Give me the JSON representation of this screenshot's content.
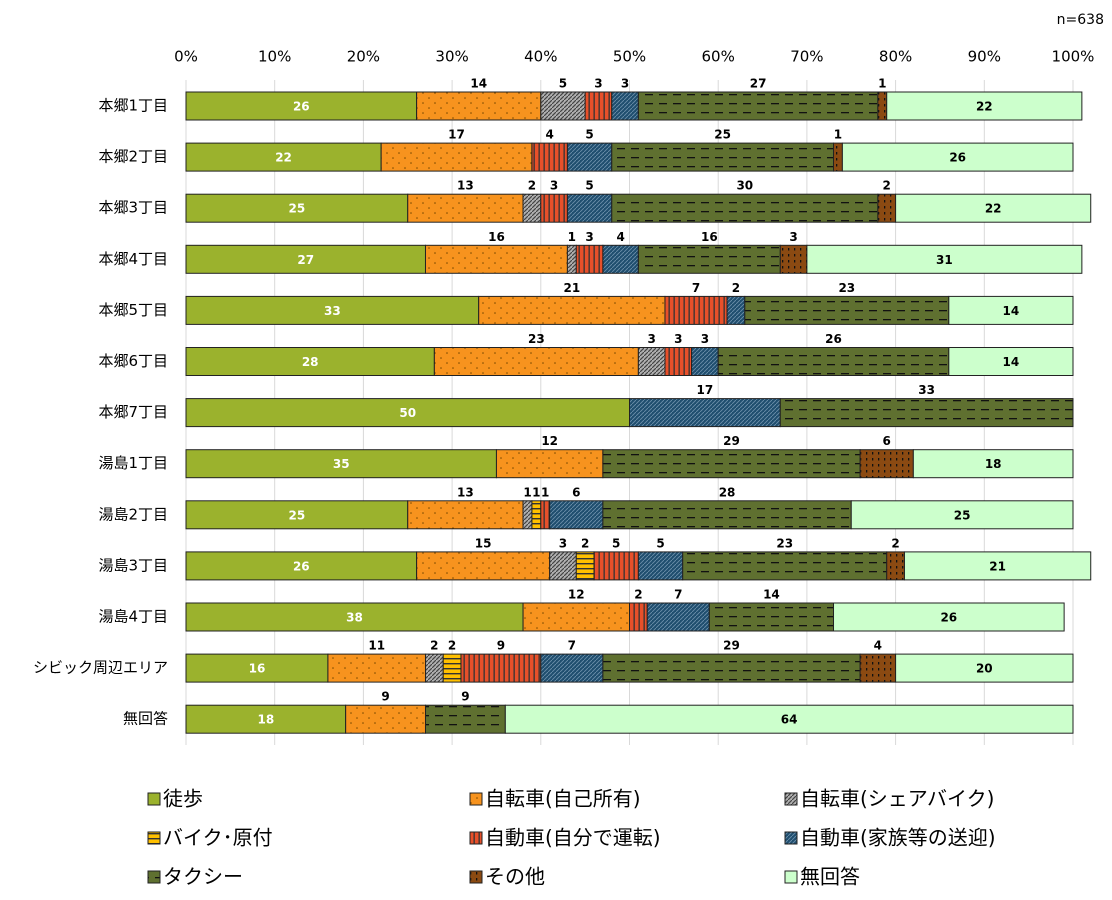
{
  "chart_data": {
    "type": "stacked-bar-horizontal",
    "note": "n=638",
    "categories": [
      "本郷1丁目",
      "本郷2丁目",
      "本郷3丁目",
      "本郷4丁目",
      "本郷5丁目",
      "本郷6丁目",
      "本郷7丁目",
      "湯島1丁目",
      "湯島2丁目",
      "湯島3丁目",
      "湯島4丁目",
      "シビック周辺エリア",
      "無回答"
    ],
    "xlim": [
      0,
      100
    ],
    "xticks": [
      {
        "value": 0,
        "label": "0%"
      },
      {
        "value": 10,
        "label": "10%"
      },
      {
        "value": 20,
        "label": "20%"
      },
      {
        "value": 30,
        "label": "30%"
      },
      {
        "value": 40,
        "label": "40%"
      },
      {
        "value": 50,
        "label": "50%"
      },
      {
        "value": 60,
        "label": "60%"
      },
      {
        "value": 70,
        "label": "70%"
      },
      {
        "value": 80,
        "label": "80%"
      },
      {
        "value": 90,
        "label": "90%"
      },
      {
        "value": 100,
        "label": "100%"
      }
    ],
    "grid": true,
    "series": [
      {
        "name": "徒歩",
        "color": "#9bb22d",
        "values": [
          26,
          22,
          25,
          27,
          33,
          28,
          50,
          35,
          25,
          26,
          38,
          16,
          18
        ]
      },
      {
        "name": "自転車(自己所有)",
        "color": "#f7931e",
        "values": [
          14,
          17,
          13,
          16,
          21,
          23,
          null,
          12,
          13,
          15,
          12,
          11,
          9
        ]
      },
      {
        "name": "自転車(シェアバイク)",
        "color": "#8c8c8c",
        "values": [
          5,
          null,
          2,
          1,
          null,
          3,
          null,
          null,
          1,
          3,
          null,
          2,
          null
        ]
      },
      {
        "name": "バイク･原付",
        "color": "#ffc000",
        "values": [
          null,
          null,
          null,
          null,
          null,
          null,
          null,
          null,
          1,
          2,
          null,
          2,
          null
        ]
      },
      {
        "name": "自動車(自分で運転)",
        "color": "#e8502a",
        "values": [
          3,
          4,
          3,
          3,
          7,
          3,
          null,
          null,
          1,
          5,
          2,
          9,
          null
        ]
      },
      {
        "name": "自動車(家族等の送迎)",
        "color": "#1f4e6e",
        "values": [
          3,
          5,
          5,
          4,
          2,
          3,
          17,
          null,
          6,
          5,
          7,
          7,
          null
        ]
      },
      {
        "name": "タクシー",
        "color": "#5f7030",
        "values": [
          27,
          25,
          30,
          16,
          23,
          26,
          33,
          29,
          28,
          23,
          14,
          29,
          9
        ]
      },
      {
        "name": "その他",
        "color": "#8b4a12",
        "values": [
          1,
          1,
          2,
          3,
          null,
          null,
          null,
          6,
          null,
          2,
          null,
          4,
          null
        ]
      },
      {
        "name": "無回答",
        "color": "#ccffcc",
        "values": [
          22,
          26,
          22,
          31,
          14,
          14,
          null,
          18,
          25,
          21,
          26,
          20,
          64
        ]
      }
    ]
  }
}
